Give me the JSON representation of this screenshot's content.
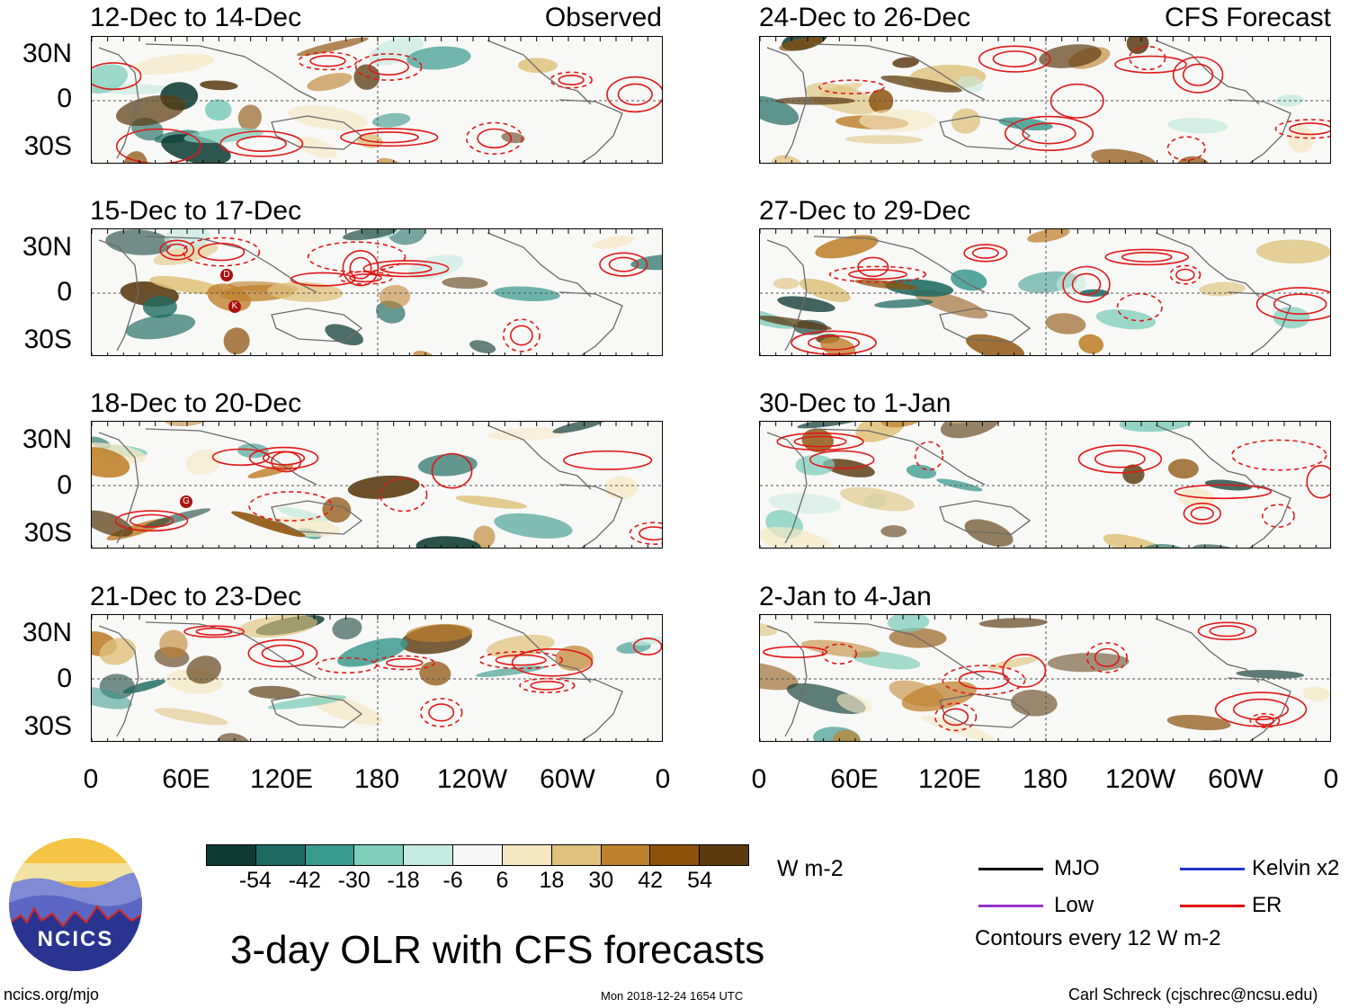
{
  "panels_observed": [
    {
      "dates": "12-Dec to 14-Dec",
      "label": "Observed"
    },
    {
      "dates": "15-Dec to 17-Dec"
    },
    {
      "dates": "18-Dec to 20-Dec"
    },
    {
      "dates": "21-Dec to 23-Dec"
    }
  ],
  "panels_forecast": [
    {
      "dates": "24-Dec to 26-Dec",
      "label": "CFS Forecast"
    },
    {
      "dates": "27-Dec to 29-Dec"
    },
    {
      "dates": "30-Dec to 1-Jan"
    },
    {
      "dates": "2-Jan to 4-Jan"
    }
  ],
  "lat_labels": [
    "30N",
    "0",
    "30S"
  ],
  "lon_labels": [
    "0",
    "60E",
    "120E",
    "180",
    "120W",
    "60W",
    "0"
  ],
  "colorbar": {
    "colors": [
      "#0d3b33",
      "#1f6b63",
      "#3b9a8f",
      "#7fcdbb",
      "#c7eae0",
      "#f7f7f7",
      "#f6e8c3",
      "#dfc27d",
      "#bf812d",
      "#8c510a",
      "#5b3a10"
    ],
    "ticks": [
      "-54",
      "-42",
      "-30",
      "-18",
      "-6",
      "6",
      "18",
      "30",
      "42",
      "54"
    ],
    "units": "W m-2"
  },
  "legend": {
    "items": [
      {
        "name": "MJO",
        "color": "#000000"
      },
      {
        "name": "Kelvin x2",
        "color": "#2233cc"
      },
      {
        "name": "Low",
        "color": "#9933cc"
      },
      {
        "name": "ER",
        "color": "#dd1111"
      }
    ],
    "note": "Contours every 12 W m-2"
  },
  "logo_text": "NCICS",
  "title": "3-day OLR with CFS forecasts",
  "footer": {
    "url": "ncics.org/mjo",
    "timestamp": "Mon 2018-12-24 1654 UTC",
    "credit": "Carl Schreck (cjschrec@ncsu.edu)"
  },
  "storm_markers": [
    {
      "panel": 1,
      "letter": "D"
    },
    {
      "panel": 1,
      "letter": "K"
    },
    {
      "panel": 2,
      "letter": "G"
    }
  ]
}
